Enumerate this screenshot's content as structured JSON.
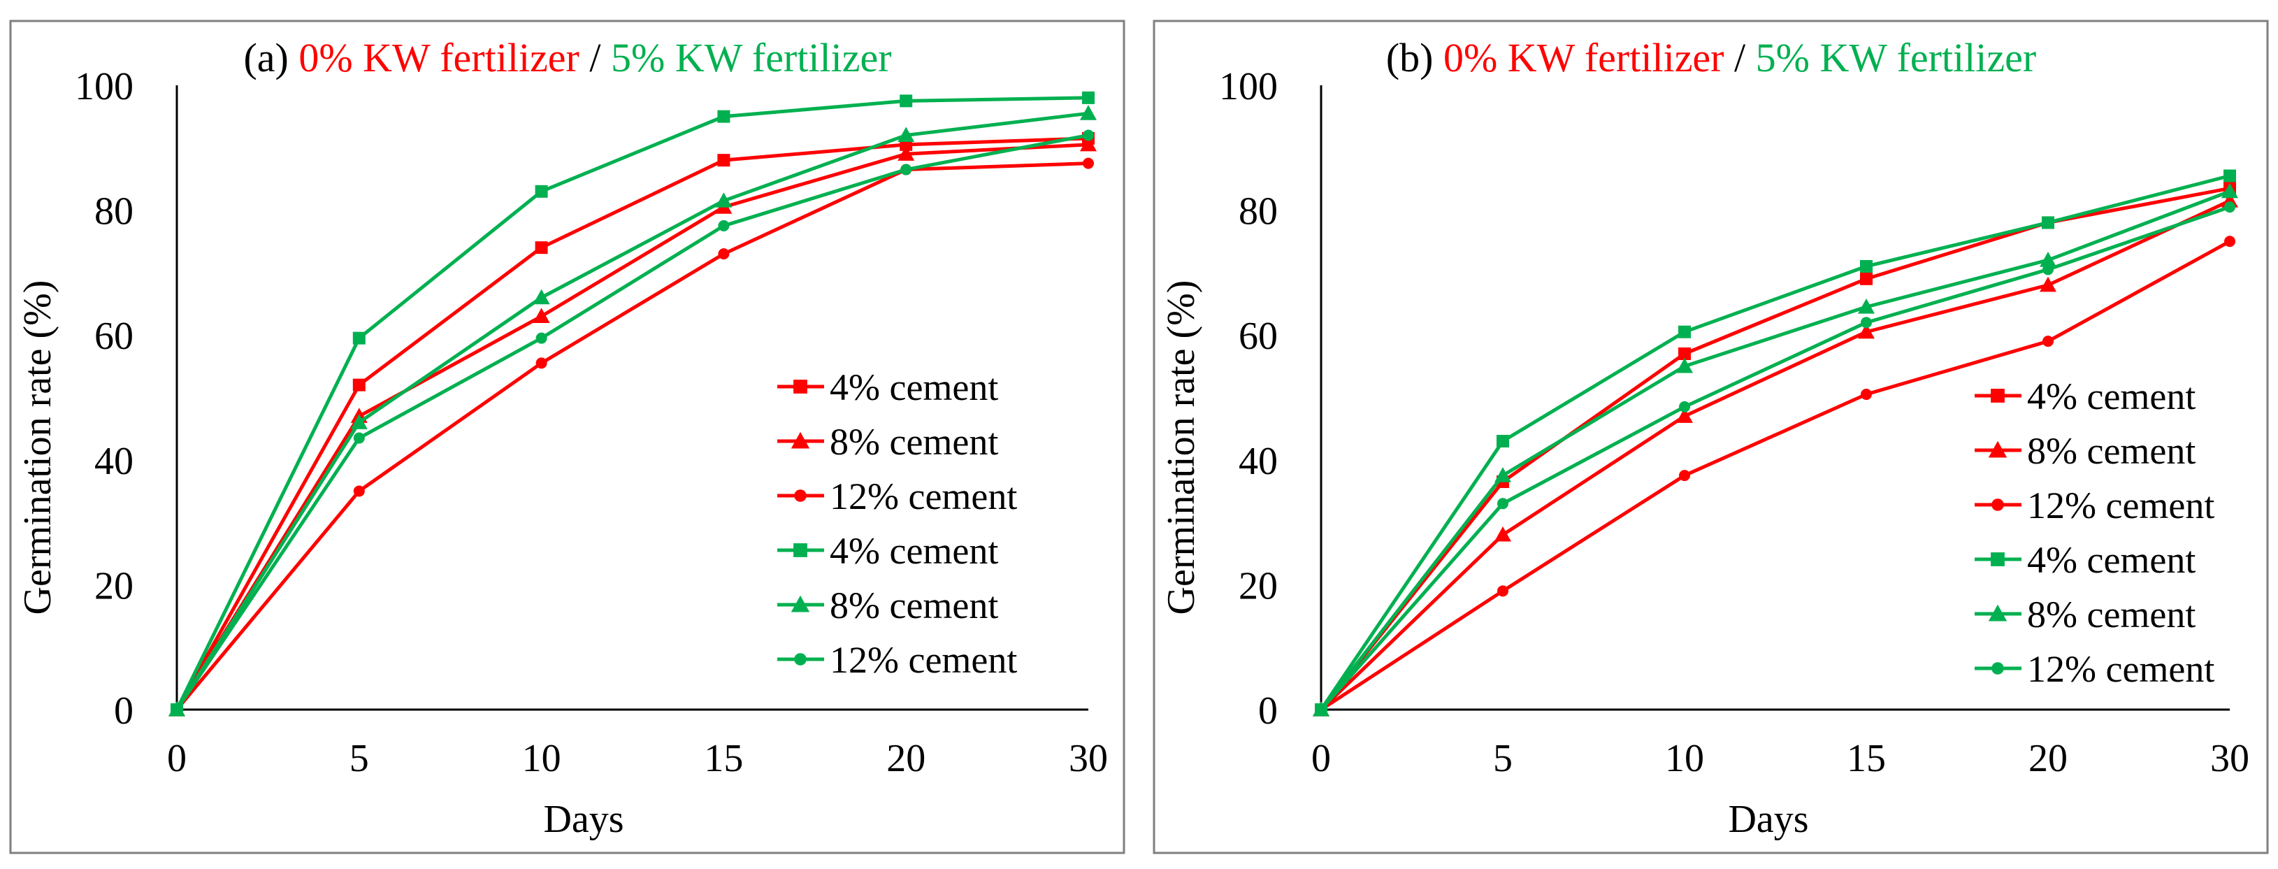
{
  "colors": {
    "red": "#ff0000",
    "green": "#00b050",
    "axis": "#000000",
    "frame": "#7f7f7f"
  },
  "panels": [
    {
      "prefix": "(a) ",
      "title_red": "0% KW fertilizer",
      "title_sep": " / ",
      "title_green": "5% KW fertilizer"
    },
    {
      "prefix": "(b) ",
      "title_red": "0% KW fertilizer",
      "title_sep": " / ",
      "title_green": "5% KW fertilizer"
    }
  ],
  "chart_data": [
    {
      "type": "line",
      "title": "(a) 0% KW fertilizer / 5% KW fertilizer",
      "xlabel": "Days",
      "ylabel": "Germination rate (%)",
      "categories": [
        "0",
        "5",
        "10",
        "15",
        "20",
        "30"
      ],
      "ylim": [
        0,
        100
      ],
      "yticks": [
        0,
        20,
        40,
        60,
        80,
        100
      ],
      "grid": false,
      "legend_position": "right",
      "series": [
        {
          "name": "4% cement",
          "color": "#ff0000",
          "marker": "square",
          "values": [
            0,
            52,
            74,
            88,
            90.5,
            91.5
          ]
        },
        {
          "name": "8% cement",
          "color": "#ff0000",
          "marker": "triangle",
          "values": [
            0,
            47,
            63,
            80.5,
            89,
            90.5
          ]
        },
        {
          "name": "12% cement",
          "color": "#ff0000",
          "marker": "circle",
          "values": [
            0,
            35,
            55.5,
            73,
            86.5,
            87.5
          ]
        },
        {
          "name": "4% cement",
          "color": "#00b050",
          "marker": "square",
          "values": [
            0,
            59.5,
            83,
            95,
            97.5,
            98
          ]
        },
        {
          "name": "8% cement",
          "color": "#00b050",
          "marker": "triangle",
          "values": [
            0,
            46,
            66,
            81.5,
            92,
            95.5
          ]
        },
        {
          "name": "12% cement",
          "color": "#00b050",
          "marker": "circle",
          "values": [
            0,
            43.5,
            59.5,
            77.5,
            86.5,
            92
          ]
        }
      ]
    },
    {
      "type": "line",
      "title": "(b) 0% KW fertilizer / 5% KW fertilizer",
      "xlabel": "Days",
      "ylabel": "Germination rate (%)",
      "categories": [
        "0",
        "5",
        "10",
        "15",
        "20",
        "30"
      ],
      "ylim": [
        0,
        100
      ],
      "yticks": [
        0,
        20,
        40,
        60,
        80,
        100
      ],
      "grid": false,
      "legend_position": "right",
      "series": [
        {
          "name": "4% cement",
          "color": "#ff0000",
          "marker": "square",
          "values": [
            0,
            36.5,
            57,
            69,
            78,
            83.5
          ]
        },
        {
          "name": "8% cement",
          "color": "#ff0000",
          "marker": "triangle",
          "values": [
            0,
            28,
            47,
            60.5,
            68,
            81.5
          ]
        },
        {
          "name": "12% cement",
          "color": "#ff0000",
          "marker": "circle",
          "values": [
            0,
            19,
            37.5,
            50.5,
            59,
            75
          ]
        },
        {
          "name": "4% cement",
          "color": "#00b050",
          "marker": "square",
          "values": [
            0,
            43,
            60.5,
            71,
            78,
            85.5
          ]
        },
        {
          "name": "8% cement",
          "color": "#00b050",
          "marker": "triangle",
          "values": [
            0,
            37.5,
            55,
            64.5,
            72,
            83
          ]
        },
        {
          "name": "12% cement",
          "color": "#00b050",
          "marker": "circle",
          "values": [
            0,
            33,
            48.5,
            62,
            70.5,
            80.5
          ]
        }
      ]
    }
  ]
}
